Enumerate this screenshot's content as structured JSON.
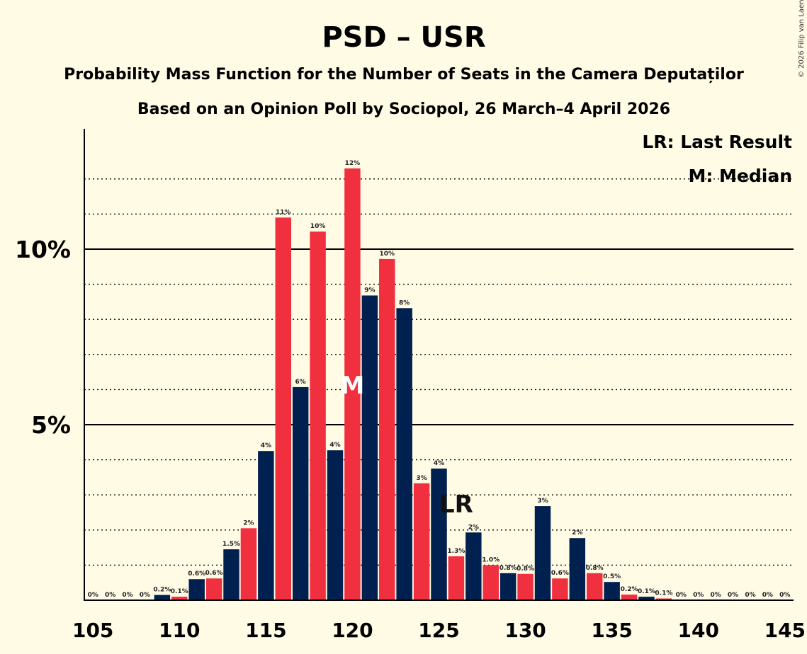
{
  "chart_data": {
    "type": "bar",
    "title": "PSD – USR",
    "subtitle": "Probability Mass Function for the Number of Seats in the Camera Deputaților",
    "source_line": "Based on an Opinion Poll by Sociopol, 26 March–4 April 2026",
    "copyright": "© 2026 Filip van Laenen",
    "legend": {
      "last_result": "LR: Last Result",
      "median": "M: Median",
      "placement": "top-right"
    },
    "xlabel": "",
    "ylabel": "",
    "ylim": [
      0,
      13.5
    ],
    "xlim": [
      104.5,
      145.5
    ],
    "y_ticks": [
      {
        "value": 5,
        "label": "5%"
      },
      {
        "value": 10,
        "label": "10%"
      }
    ],
    "y_minor_gridlines": [
      1,
      2,
      3,
      4,
      6,
      7,
      8,
      9,
      11,
      12
    ],
    "x_ticks": [
      105,
      110,
      115,
      120,
      125,
      130,
      135,
      140,
      145
    ],
    "colors": {
      "navy": "#00204F",
      "red": "#F0303F",
      "background": "#FFFBE5",
      "grid": "#000000"
    },
    "median_seat": 120,
    "last_result_seat": 126,
    "median_marker": "M",
    "last_result_marker": "LR",
    "bars": [
      {
        "seat": 105,
        "value": 0.0,
        "label": "0%",
        "color": "navy"
      },
      {
        "seat": 106,
        "value": 0.0,
        "label": "0%",
        "color": "red"
      },
      {
        "seat": 107,
        "value": 0.0,
        "label": "0%",
        "color": "navy"
      },
      {
        "seat": 108,
        "value": 0.0,
        "label": "0%",
        "color": "red"
      },
      {
        "seat": 109,
        "value": 0.15,
        "label": "0.2%",
        "color": "navy"
      },
      {
        "seat": 110,
        "value": 0.1,
        "label": "0.1%",
        "color": "red"
      },
      {
        "seat": 111,
        "value": 0.6,
        "label": "0.6%",
        "color": "navy"
      },
      {
        "seat": 112,
        "value": 0.62,
        "label": "0.6%",
        "color": "red"
      },
      {
        "seat": 113,
        "value": 1.45,
        "label": "1.5%",
        "color": "navy"
      },
      {
        "seat": 114,
        "value": 2.05,
        "label": "2%",
        "color": "red"
      },
      {
        "seat": 115,
        "value": 4.25,
        "label": "4%",
        "color": "navy"
      },
      {
        "seat": 116,
        "value": 10.9,
        "label": "11%",
        "color": "red"
      },
      {
        "seat": 117,
        "value": 6.07,
        "label": "6%",
        "color": "navy"
      },
      {
        "seat": 118,
        "value": 10.5,
        "label": "10%",
        "color": "red"
      },
      {
        "seat": 119,
        "value": 4.27,
        "label": "4%",
        "color": "navy"
      },
      {
        "seat": 120,
        "value": 12.3,
        "label": "12%",
        "color": "red"
      },
      {
        "seat": 121,
        "value": 8.68,
        "label": "9%",
        "color": "navy"
      },
      {
        "seat": 122,
        "value": 9.72,
        "label": "10%",
        "color": "red"
      },
      {
        "seat": 123,
        "value": 8.32,
        "label": "8%",
        "color": "navy"
      },
      {
        "seat": 124,
        "value": 3.33,
        "label": "3%",
        "color": "red"
      },
      {
        "seat": 125,
        "value": 3.75,
        "label": "4%",
        "color": "navy"
      },
      {
        "seat": 126,
        "value": 1.25,
        "label": "1.3%",
        "color": "red"
      },
      {
        "seat": 127,
        "value": 1.93,
        "label": "2%",
        "color": "navy"
      },
      {
        "seat": 128,
        "value": 1.0,
        "label": "1.0%",
        "color": "red"
      },
      {
        "seat": 129,
        "value": 0.77,
        "label": "0.8%",
        "color": "navy"
      },
      {
        "seat": 130,
        "value": 0.75,
        "label": "0.8%",
        "color": "red"
      },
      {
        "seat": 131,
        "value": 2.68,
        "label": "3%",
        "color": "navy"
      },
      {
        "seat": 132,
        "value": 0.62,
        "label": "0.6%",
        "color": "red"
      },
      {
        "seat": 133,
        "value": 1.77,
        "label": "2%",
        "color": "navy"
      },
      {
        "seat": 134,
        "value": 0.77,
        "label": "0.8%",
        "color": "red"
      },
      {
        "seat": 135,
        "value": 0.52,
        "label": "0.5%",
        "color": "navy"
      },
      {
        "seat": 136,
        "value": 0.16,
        "label": "0.2%",
        "color": "red"
      },
      {
        "seat": 137,
        "value": 0.1,
        "label": "0.1%",
        "color": "navy"
      },
      {
        "seat": 138,
        "value": 0.05,
        "label": "0.1%",
        "color": "red"
      },
      {
        "seat": 139,
        "value": 0.0,
        "label": "0%",
        "color": "navy"
      },
      {
        "seat": 140,
        "value": 0.0,
        "label": "0%",
        "color": "red"
      },
      {
        "seat": 141,
        "value": 0.0,
        "label": "0%",
        "color": "navy"
      },
      {
        "seat": 142,
        "value": 0.0,
        "label": "0%",
        "color": "red"
      },
      {
        "seat": 143,
        "value": 0.0,
        "label": "0%",
        "color": "navy"
      },
      {
        "seat": 144,
        "value": 0.0,
        "label": "0%",
        "color": "red"
      },
      {
        "seat": 145,
        "value": 0.0,
        "label": "0%",
        "color": "navy"
      }
    ]
  }
}
